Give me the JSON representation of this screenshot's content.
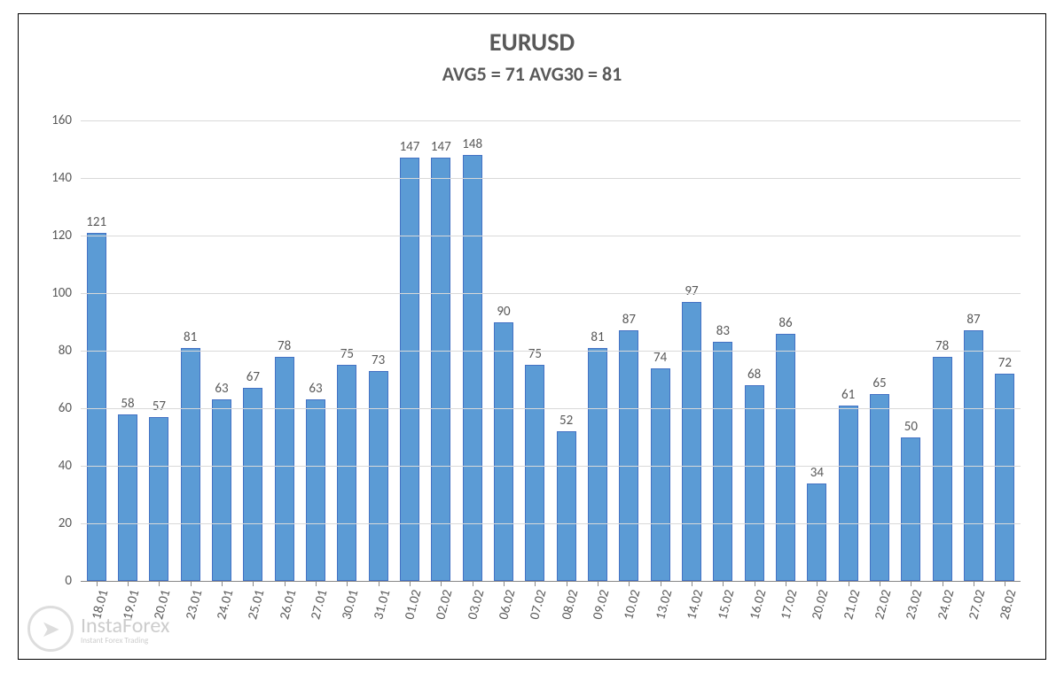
{
  "chart": {
    "type": "bar",
    "title": "EURUSD",
    "title_fontsize": 28,
    "title_color": "#595959",
    "subtitle": "AVG5 = 71 AVG30 = 81",
    "subtitle_fontsize": 22,
    "subtitle_color": "#595959",
    "background_color": "#ffffff",
    "border_color": "#000000",
    "plot_border_color": "#888888",
    "grid_color": "#d9d9d9",
    "bar_fill": "#5b9bd5",
    "bar_border": "#4472c4",
    "bar_width_ratio": 0.62,
    "ylim": [
      0,
      160
    ],
    "ytick_step": 20,
    "y_tick_fontsize": 15,
    "y_tick_color": "#595959",
    "x_tick_fontsize": 15,
    "x_tick_color": "#595959",
    "value_label_fontsize": 15,
    "value_label_color": "#595959",
    "categories": [
      "18.01",
      "19.01",
      "20.01",
      "23.01",
      "24.01",
      "25.01",
      "26.01",
      "27.01",
      "30.01",
      "31.01",
      "01.02",
      "02.02",
      "03.02",
      "06.02",
      "07.02",
      "08.02",
      "09.02",
      "10.02",
      "13.02",
      "14.02",
      "15.02",
      "16.02",
      "17.02",
      "20.02",
      "21.02",
      "22.02",
      "23.02",
      "24.02",
      "27.02",
      "28.02"
    ],
    "values": [
      121,
      58,
      57,
      81,
      63,
      67,
      78,
      63,
      75,
      73,
      147,
      147,
      148,
      90,
      75,
      52,
      81,
      87,
      74,
      97,
      83,
      68,
      86,
      34,
      61,
      65,
      50,
      78,
      87,
      72
    ]
  },
  "watermark": {
    "brand": "InstaForex",
    "tagline": "Instant Forex Trading"
  }
}
